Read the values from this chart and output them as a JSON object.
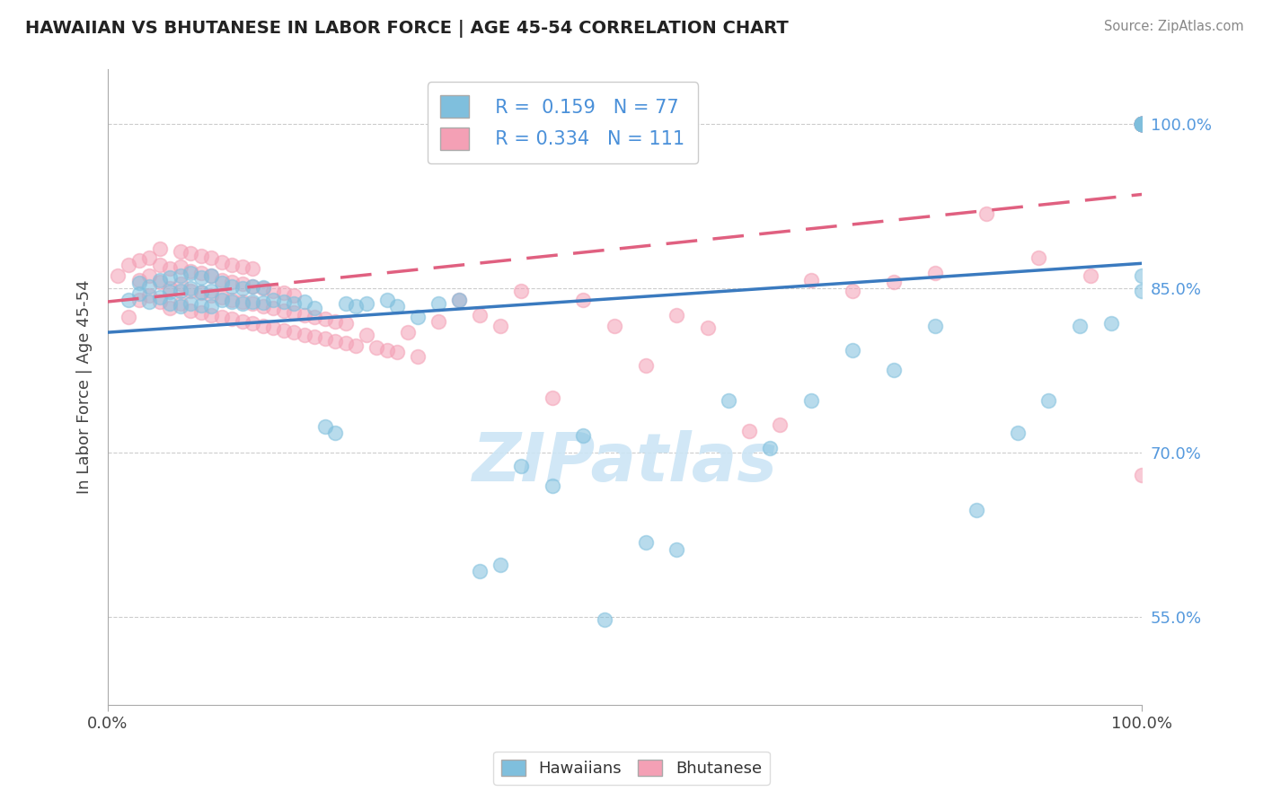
{
  "title": "HAWAIIAN VS BHUTANESE IN LABOR FORCE | AGE 45-54 CORRELATION CHART",
  "source_text": "Source: ZipAtlas.com",
  "ylabel": "In Labor Force | Age 45-54",
  "ytick_labels": [
    "55.0%",
    "70.0%",
    "85.0%",
    "100.0%"
  ],
  "ytick_values": [
    0.55,
    0.7,
    0.85,
    1.0
  ],
  "xlim": [
    0.0,
    1.0
  ],
  "ylim": [
    0.47,
    1.05
  ],
  "hawaiian_R": 0.159,
  "hawaiian_N": 77,
  "bhutanese_R": 0.334,
  "bhutanese_N": 111,
  "blue_color": "#7fbfdd",
  "pink_color": "#f4a0b5",
  "blue_line_color": "#3a7abf",
  "pink_line_color": "#e06080",
  "legend_label_hawaiians": "Hawaiians",
  "legend_label_bhutanese": "Bhutanese",
  "hawaiian_points_x": [
    0.02,
    0.03,
    0.03,
    0.04,
    0.04,
    0.05,
    0.05,
    0.06,
    0.06,
    0.06,
    0.07,
    0.07,
    0.07,
    0.08,
    0.08,
    0.08,
    0.09,
    0.09,
    0.09,
    0.1,
    0.1,
    0.1,
    0.11,
    0.11,
    0.12,
    0.12,
    0.13,
    0.13,
    0.14,
    0.14,
    0.15,
    0.15,
    0.16,
    0.17,
    0.18,
    0.19,
    0.2,
    0.21,
    0.22,
    0.23,
    0.24,
    0.25,
    0.27,
    0.28,
    0.3,
    0.32,
    0.34,
    0.36,
    0.38,
    0.4,
    0.43,
    0.46,
    0.48,
    0.52,
    0.55,
    0.6,
    0.64,
    0.68,
    0.72,
    0.76,
    0.8,
    0.84,
    0.88,
    0.91,
    0.94,
    0.97,
    1.0,
    1.0,
    1.0,
    1.0,
    1.0,
    1.0,
    1.0,
    1.0,
    1.0,
    1.0,
    1.0
  ],
  "hawaiian_points_y": [
    0.84,
    0.845,
    0.855,
    0.838,
    0.852,
    0.842,
    0.858,
    0.836,
    0.847,
    0.86,
    0.834,
    0.848,
    0.862,
    0.836,
    0.85,
    0.864,
    0.835,
    0.847,
    0.86,
    0.834,
    0.848,
    0.862,
    0.84,
    0.855,
    0.838,
    0.852,
    0.836,
    0.85,
    0.838,
    0.852,
    0.837,
    0.851,
    0.84,
    0.838,
    0.836,
    0.838,
    0.832,
    0.724,
    0.718,
    0.836,
    0.834,
    0.836,
    0.84,
    0.834,
    0.824,
    0.836,
    0.84,
    0.592,
    0.598,
    0.688,
    0.67,
    0.716,
    0.548,
    0.618,
    0.612,
    0.748,
    0.704,
    0.748,
    0.794,
    0.776,
    0.816,
    0.648,
    0.718,
    0.748,
    0.816,
    0.818,
    0.848,
    1.0,
    1.0,
    1.0,
    1.0,
    1.0,
    1.0,
    1.0,
    1.0,
    1.0,
    0.862
  ],
  "bhutanese_points_x": [
    0.01,
    0.02,
    0.02,
    0.03,
    0.03,
    0.03,
    0.04,
    0.04,
    0.04,
    0.05,
    0.05,
    0.05,
    0.05,
    0.06,
    0.06,
    0.06,
    0.07,
    0.07,
    0.07,
    0.07,
    0.08,
    0.08,
    0.08,
    0.08,
    0.09,
    0.09,
    0.09,
    0.09,
    0.1,
    0.1,
    0.1,
    0.1,
    0.11,
    0.11,
    0.11,
    0.11,
    0.12,
    0.12,
    0.12,
    0.12,
    0.13,
    0.13,
    0.13,
    0.13,
    0.14,
    0.14,
    0.14,
    0.14,
    0.15,
    0.15,
    0.15,
    0.16,
    0.16,
    0.16,
    0.17,
    0.17,
    0.17,
    0.18,
    0.18,
    0.18,
    0.19,
    0.19,
    0.2,
    0.2,
    0.21,
    0.21,
    0.22,
    0.22,
    0.23,
    0.23,
    0.24,
    0.25,
    0.26,
    0.27,
    0.28,
    0.29,
    0.3,
    0.32,
    0.34,
    0.36,
    0.38,
    0.4,
    0.43,
    0.46,
    0.49,
    0.52,
    0.55,
    0.58,
    0.62,
    0.65,
    0.68,
    0.72,
    0.76,
    0.8,
    0.85,
    0.9,
    0.95,
    1.0,
    1.0,
    1.0,
    1.0,
    1.0,
    1.0,
    1.0,
    1.0,
    1.0,
    1.0,
    1.0,
    1.0,
    1.0,
    1.0
  ],
  "bhutanese_points_y": [
    0.862,
    0.824,
    0.872,
    0.84,
    0.858,
    0.876,
    0.844,
    0.862,
    0.878,
    0.838,
    0.856,
    0.872,
    0.886,
    0.832,
    0.85,
    0.868,
    0.836,
    0.854,
    0.87,
    0.884,
    0.83,
    0.848,
    0.866,
    0.882,
    0.828,
    0.846,
    0.864,
    0.88,
    0.826,
    0.844,
    0.862,
    0.878,
    0.824,
    0.842,
    0.858,
    0.874,
    0.822,
    0.84,
    0.856,
    0.872,
    0.82,
    0.838,
    0.854,
    0.87,
    0.818,
    0.836,
    0.852,
    0.868,
    0.816,
    0.834,
    0.85,
    0.814,
    0.832,
    0.848,
    0.812,
    0.83,
    0.846,
    0.81,
    0.828,
    0.844,
    0.808,
    0.826,
    0.806,
    0.824,
    0.804,
    0.822,
    0.802,
    0.82,
    0.8,
    0.818,
    0.798,
    0.808,
    0.796,
    0.794,
    0.792,
    0.81,
    0.788,
    0.82,
    0.84,
    0.826,
    0.816,
    0.848,
    0.75,
    0.84,
    0.816,
    0.78,
    0.826,
    0.814,
    0.72,
    0.726,
    0.858,
    0.848,
    0.856,
    0.864,
    0.918,
    0.878,
    0.862,
    1.0,
    1.0,
    1.0,
    1.0,
    1.0,
    1.0,
    1.0,
    1.0,
    1.0,
    1.0,
    1.0,
    1.0,
    1.0,
    0.68
  ]
}
